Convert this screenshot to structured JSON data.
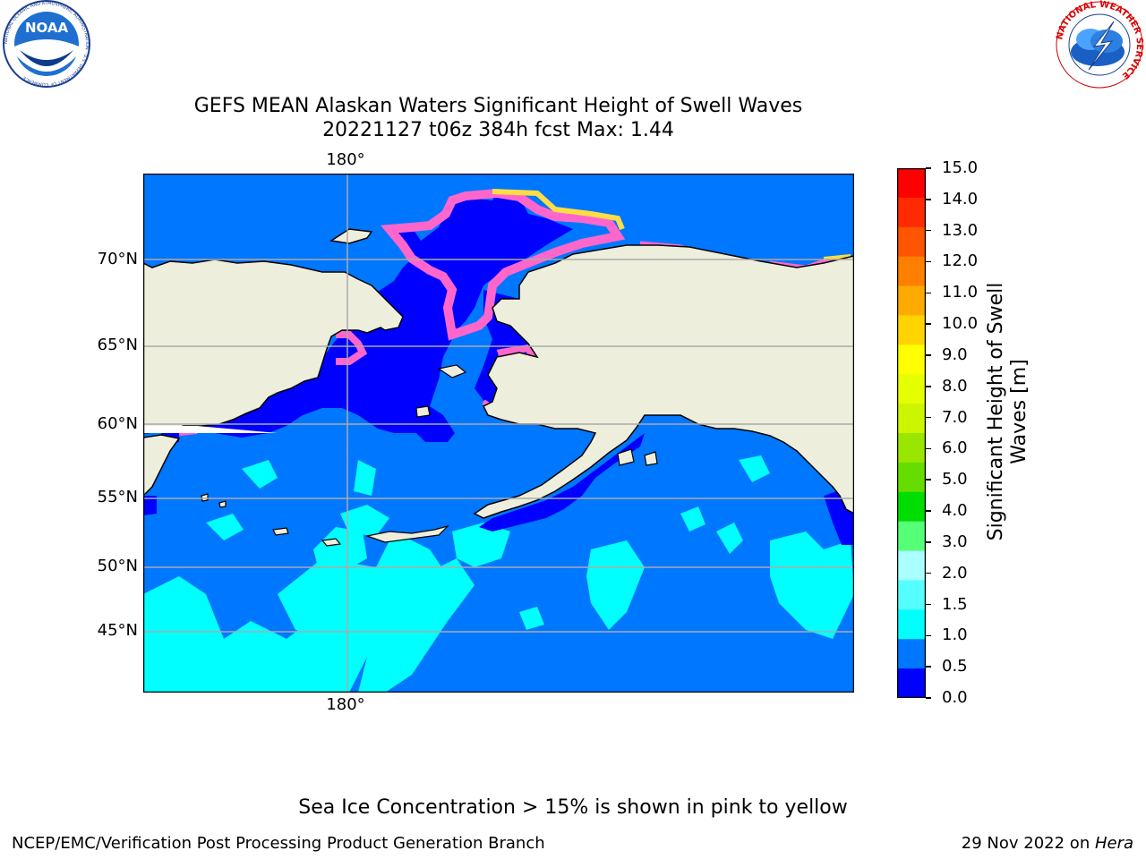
{
  "header": {
    "title_line1": "GEFS MEAN Alaskan Waters Significant Height of Swell Waves",
    "title_line2": "20221127 t06z 384h fcst   Max: 1.44"
  },
  "logos": {
    "noaa": {
      "text": "NOAA",
      "ring_text": "NATIONAL OCEANIC AND ATMOSPHERIC ADMINISTRATION · U.S. DEPARTMENT OF COMMERCE"
    },
    "nws": {
      "ring_text": "NATIONAL WEATHER SERVICE"
    }
  },
  "map": {
    "lon_label_top": "180°",
    "lon_label_bottom": "180°",
    "lat_labels": [
      "70°N",
      "65°N",
      "60°N",
      "55°N",
      "50°N",
      "45°N"
    ],
    "colors": {
      "land": "#eeeedd",
      "ocean_0_05": "#0000ff",
      "ocean_05_1": "#0077ff",
      "ocean_1_15": "#00ffff",
      "ice": "#ff66cc",
      "ice_edge": "#ffdd44",
      "grid": "#aaaaaa"
    }
  },
  "colorbar": {
    "label": "Significant Height of Swell Waves [m]",
    "label_line1": "Significant Height of Swell",
    "label_line2": "Waves [m]",
    "ticks": [
      "15.0",
      "14.0",
      "13.0",
      "12.0",
      "11.0",
      "10.0",
      "9.0",
      "8.0",
      "7.0",
      "6.0",
      "5.0",
      "4.0",
      "3.0",
      "2.0",
      "1.5",
      "1.0",
      "0.5",
      "0.0"
    ],
    "colors_top_to_bottom": [
      "#ff0000",
      "#ff2a00",
      "#ff5500",
      "#ff7f00",
      "#ffaa00",
      "#ffd400",
      "#ffff00",
      "#e5ff00",
      "#ccf500",
      "#99e600",
      "#66dd00",
      "#00dd00",
      "#55ff77",
      "#aaffff",
      "#55ffff",
      "#00ffff",
      "#0077ff",
      "#0000ff"
    ]
  },
  "footer": {
    "ice_note": "Sea Ice Concentration > 15% is shown in pink to yellow",
    "branch": "NCEP/EMC/Verification Post Processing Product Generation Branch",
    "date": "29 Nov 2022 on ",
    "machine": "Hera"
  }
}
